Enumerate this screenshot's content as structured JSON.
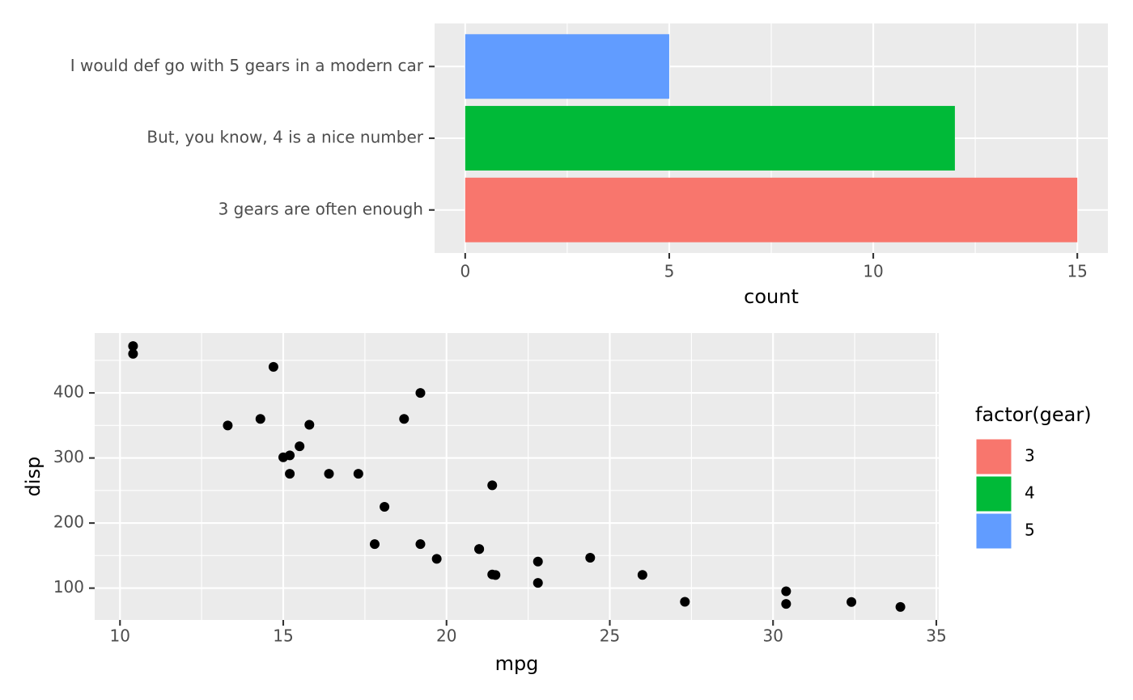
{
  "chart_data": [
    {
      "type": "hbar",
      "categories": [
        "3 gears are often enough",
        "But, you know, 4 is a nice number",
        "I would def go with 5 gears in a modern car"
      ],
      "values": [
        15,
        12,
        5
      ],
      "colors": [
        "#F8766D",
        "#00BA38",
        "#619CFF"
      ],
      "x_label": "count",
      "xlim": [
        -0.75,
        15.75
      ],
      "xticks": [
        0,
        5,
        10,
        15
      ],
      "xminor": [
        2.5,
        7.5,
        12.5
      ],
      "grid": true,
      "legend": {
        "title": "factor(gear)",
        "labels": [
          "3",
          "4",
          "5"
        ],
        "position": "right"
      }
    },
    {
      "type": "scatter",
      "x_label": "mpg",
      "y_label": "disp",
      "color": "#000000",
      "x": [
        21,
        21,
        22.8,
        21.4,
        18.7,
        18.1,
        14.3,
        24.4,
        22.8,
        19.2,
        17.8,
        16.4,
        17.3,
        15.2,
        10.4,
        10.4,
        14.7,
        32.4,
        30.4,
        33.9,
        21.5,
        15.5,
        15.2,
        13.3,
        19.2,
        27.3,
        26,
        30.4,
        15.8,
        19.7,
        15,
        21.4
      ],
      "values": [
        160,
        160,
        108,
        258,
        360,
        225,
        360,
        146.7,
        140.8,
        167.6,
        167.6,
        275.8,
        275.8,
        275.8,
        472,
        460,
        440,
        78.7,
        75.7,
        71.1,
        120.1,
        318,
        304,
        350,
        400,
        79,
        120.3,
        95.1,
        351,
        145,
        301,
        121
      ],
      "xlim": [
        9.225,
        35.075
      ],
      "ylim": [
        51.055,
        492.045
      ],
      "xticks": [
        10,
        15,
        20,
        25,
        30,
        35
      ],
      "yticks": [
        100,
        200,
        300,
        400
      ],
      "xminor": [
        12.5,
        17.5,
        22.5,
        27.5,
        32.5
      ],
      "yminor": [
        150,
        250,
        350,
        450
      ],
      "grid": true
    }
  ]
}
